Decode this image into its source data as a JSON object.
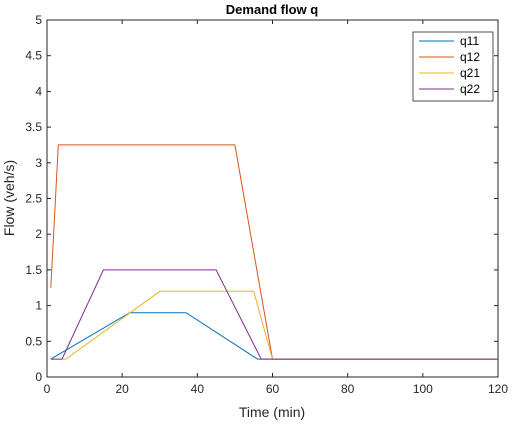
{
  "chart_data": {
    "type": "line",
    "title": "Demand flow q",
    "xlabel": "Time (min)",
    "ylabel": "Flow (veh/s)",
    "xlim": [
      0,
      120
    ],
    "ylim": [
      0,
      5
    ],
    "xticks": [
      0,
      20,
      40,
      60,
      80,
      100,
      120
    ],
    "yticks": [
      0,
      0.5,
      1,
      1.5,
      2,
      2.5,
      3,
      3.5,
      4,
      4.5,
      5
    ],
    "xtick_labels": [
      "0",
      "20",
      "40",
      "60",
      "80",
      "100",
      "120"
    ],
    "ytick_labels": [
      "0",
      "0.5",
      "1",
      "1.5",
      "2",
      "2.5",
      "3",
      "3.5",
      "4",
      "4.5",
      "5"
    ],
    "grid": false,
    "legend_position": "top-right",
    "series": [
      {
        "name": "q11",
        "color": "#0072BD",
        "x": [
          1,
          22,
          37,
          56,
          60,
          120
        ],
        "y": [
          0.25,
          0.9,
          0.9,
          0.25,
          0.25,
          0.25
        ]
      },
      {
        "name": "q12",
        "color": "#D95319",
        "x": [
          1,
          3,
          50,
          60,
          120
        ],
        "y": [
          1.25,
          3.25,
          3.25,
          0.25,
          0.25
        ]
      },
      {
        "name": "q21",
        "color": "#EDB120",
        "x": [
          1,
          5,
          30,
          55,
          60,
          120
        ],
        "y": [
          0.25,
          0.25,
          1.2,
          1.2,
          0.25,
          0.25
        ]
      },
      {
        "name": "q22",
        "color": "#7E2F8E",
        "x": [
          1,
          4,
          15,
          45,
          57,
          60,
          120
        ],
        "y": [
          0.25,
          0.25,
          1.5,
          1.5,
          0.25,
          0.25,
          0.25
        ]
      }
    ]
  }
}
